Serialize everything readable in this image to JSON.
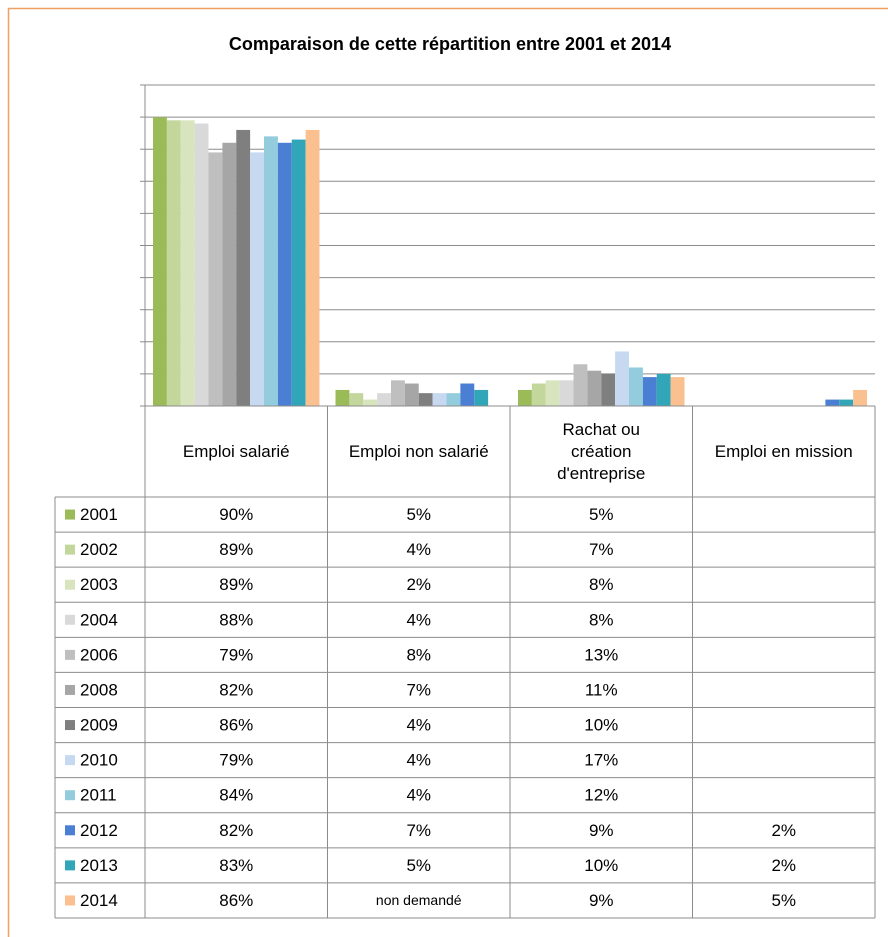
{
  "chart_data": {
    "type": "bar",
    "title": "Comparaison de cette répartition entre 2001 et 2014",
    "categories": [
      "Emploi salarié",
      "Emploi non salarié",
      "Rachat ou création d'entreprise",
      "Emploi en mission"
    ],
    "ylim": [
      0,
      100
    ],
    "yticks": [
      0,
      10,
      20,
      30,
      40,
      50,
      60,
      70,
      80,
      90,
      100
    ],
    "grid": true,
    "series": [
      {
        "name": "2001",
        "color": "#9bbb59",
        "values": [
          90,
          5,
          5,
          null
        ],
        "value_labels": [
          "90%",
          "5%",
          "5%",
          null
        ]
      },
      {
        "name": "2002",
        "color": "#c3d69b",
        "values": [
          89,
          4,
          7,
          null
        ],
        "value_labels": [
          "89%",
          "4%",
          "7%",
          null
        ]
      },
      {
        "name": "2003",
        "color": "#d7e4bd",
        "values": [
          89,
          2,
          8,
          null
        ],
        "value_labels": [
          "89%",
          "2%",
          "8%",
          null
        ]
      },
      {
        "name": "2004",
        "color": "#d9d9d9",
        "values": [
          88,
          4,
          8,
          null
        ],
        "value_labels": [
          "88%",
          "4%",
          "8%",
          null
        ]
      },
      {
        "name": "2006",
        "color": "#bfbfbf",
        "values": [
          79,
          8,
          13,
          null
        ],
        "value_labels": [
          "79%",
          "8%",
          "13%",
          null
        ]
      },
      {
        "name": "2008",
        "color": "#a6a6a6",
        "values": [
          82,
          7,
          11,
          null
        ],
        "value_labels": [
          "82%",
          "7%",
          "11%",
          null
        ]
      },
      {
        "name": "2009",
        "color": "#7f7f7f",
        "values": [
          86,
          4,
          10,
          null
        ],
        "value_labels": [
          "86%",
          "4%",
          "10%",
          null
        ]
      },
      {
        "name": "2010",
        "color": "#c6d9f1",
        "values": [
          79,
          4,
          17,
          null
        ],
        "value_labels": [
          "79%",
          "4%",
          "17%",
          null
        ]
      },
      {
        "name": "2011",
        "color": "#93cddd",
        "values": [
          84,
          4,
          12,
          null
        ],
        "value_labels": [
          "84%",
          "4%",
          "12%",
          null
        ]
      },
      {
        "name": "2012",
        "color": "#4a7fd4",
        "values": [
          82,
          7,
          9,
          2
        ],
        "value_labels": [
          "82%",
          "7%",
          "9%",
          "2%"
        ]
      },
      {
        "name": "2013",
        "color": "#31a6b8",
        "values": [
          83,
          5,
          10,
          2
        ],
        "value_labels": [
          "83%",
          "5%",
          "10%",
          "2%"
        ]
      },
      {
        "name": "2014",
        "color": "#fac090",
        "values": [
          86,
          null,
          9,
          5
        ],
        "value_labels": [
          "86%",
          "non demandé",
          "9%",
          "5%"
        ]
      }
    ]
  }
}
